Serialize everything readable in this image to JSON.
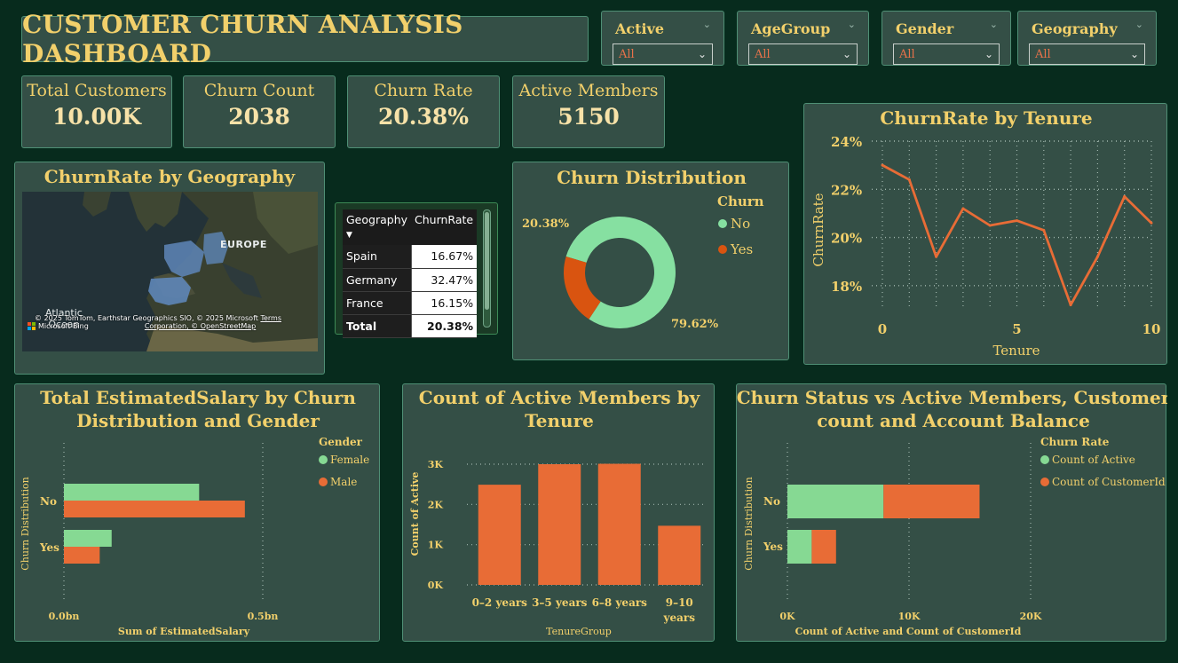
{
  "header": {
    "title": "CUSTOMER CHURN ANALYSIS DASHBOARD"
  },
  "slicers": [
    {
      "label": "Active",
      "value": "All"
    },
    {
      "label": "AgeGroup",
      "value": "All"
    },
    {
      "label": "Gender",
      "value": "All"
    },
    {
      "label": "Geography",
      "value": "All"
    }
  ],
  "kpis": [
    {
      "label": "Total Customers",
      "value": "10.00K"
    },
    {
      "label": "Churn Count",
      "value": "2038"
    },
    {
      "label": "Churn Rate",
      "value": "20.38%"
    },
    {
      "label": "Active Members",
      "value": "5150"
    }
  ],
  "map": {
    "title": "ChurnRate by Geography",
    "labels": {
      "europe": "EUROPE",
      "atlantic": "Atlantic\nOcean"
    },
    "attribution": "© 2025 TomTom, Earthstar Geographics SIO, © 2025 Microsoft",
    "attribution2": "Corporation, © OpenStreetMap",
    "terms": "Terms",
    "bing": "Microsoft Bing"
  },
  "geo_table": {
    "headers": [
      "Geography",
      "ChurnRate"
    ],
    "rows": [
      {
        "name": "Spain",
        "rate": "16.67%"
      },
      {
        "name": "Germany",
        "rate": "32.47%"
      },
      {
        "name": "France",
        "rate": "16.15%"
      }
    ],
    "total": {
      "name": "Total",
      "rate": "20.38%"
    }
  },
  "chart_data": [
    {
      "id": "churn-distribution",
      "type": "pie",
      "title": "Churn Distribution",
      "legend_title": "Churn",
      "legend_position": "right",
      "slices": [
        {
          "name": "No",
          "value": 79.62,
          "label": "79.62%",
          "color": "#86e0a1"
        },
        {
          "name": "Yes",
          "value": 20.38,
          "label": "20.38%",
          "color": "#d95410"
        }
      ]
    },
    {
      "id": "churnrate-by-tenure",
      "type": "line",
      "title": "ChurnRate by Tenure",
      "xlabel": "Tenure",
      "ylabel": "ChurnRate",
      "x": [
        0,
        1,
        2,
        3,
        4,
        5,
        6,
        7,
        8,
        9,
        10
      ],
      "series": [
        {
          "values": [
            23.0,
            22.4,
            19.2,
            21.2,
            20.5,
            20.7,
            20.3,
            17.2,
            19.2,
            21.7,
            20.6
          ],
          "color": "#e86c36"
        }
      ],
      "xticks": [
        0,
        5,
        10
      ],
      "xtick_labels": [
        "0",
        "5",
        "10"
      ],
      "yticks": [
        18,
        20,
        22,
        24
      ],
      "ytick_labels": [
        "18%",
        "20%",
        "22%",
        "24%"
      ],
      "ylim": [
        17,
        24
      ],
      "xlim": [
        0,
        10
      ],
      "grid": true
    },
    {
      "id": "salary-by-churn-gender",
      "type": "bar",
      "orientation": "horizontal",
      "title": "Total EstimatedSalary by Churn Distribution and Gender",
      "title_lines": [
        "Total EstimatedSalary by Churn",
        "Distribution and Gender"
      ],
      "xlabel": "Sum of EstimatedSalary",
      "ylabel": "Churn Distribution",
      "categories": [
        "No",
        "Yes"
      ],
      "legend_title": "Gender",
      "legend_position": "right",
      "series": [
        {
          "name": "Female",
          "values": [
            0.34,
            0.12
          ],
          "color": "#86d993"
        },
        {
          "name": "Male",
          "values": [
            0.455,
            0.09
          ],
          "color": "#e86c36"
        }
      ],
      "xlim": [
        0,
        0.5
      ],
      "xticks": [
        0,
        0.5
      ],
      "xtick_labels": [
        "0.0bn",
        "0.5bn"
      ],
      "grid": true
    },
    {
      "id": "active-members-by-tenure",
      "type": "bar",
      "title": "Count of Active Members by Tenure",
      "title_lines": [
        "Count of Active Members by",
        "Tenure"
      ],
      "xlabel": "TenureGroup",
      "ylabel": "Count of Active",
      "categories": [
        "0–2 years",
        "3–5 years",
        "6–8 years",
        "9–10\nyears"
      ],
      "values": [
        2490,
        3000,
        3010,
        1470
      ],
      "color": "#e86c36",
      "ylim": [
        0,
        3000
      ],
      "yticks": [
        0,
        1000,
        2000,
        3000
      ],
      "ytick_labels": [
        "0K",
        "1K",
        "2K",
        "3K"
      ],
      "grid": true
    },
    {
      "id": "churn-vs-active",
      "type": "bar",
      "orientation": "horizontal",
      "stacked": true,
      "title": "Churn Status vs Active Members, Customer count and Account Balance",
      "title_lines": [
        "Churn Status vs Active Members, Customer",
        "count and Account Balance"
      ],
      "xlabel": "Count of Active and Count of CustomerId",
      "ylabel": "Churn Distribution",
      "categories": [
        "No",
        "Yes"
      ],
      "legend_title": "Churn Rate",
      "legend_position": "right",
      "series": [
        {
          "name": "Count of Active",
          "values": [
            7900,
            2000
          ],
          "color": "#86d993"
        },
        {
          "name": "Count of CustomerId",
          "values": [
            7900,
            2000
          ],
          "color": "#e86c36"
        }
      ],
      "xlim": [
        0,
        20000
      ],
      "xticks": [
        0,
        10000,
        20000
      ],
      "xtick_labels": [
        "0K",
        "10K",
        "20K"
      ],
      "grid": true
    }
  ]
}
